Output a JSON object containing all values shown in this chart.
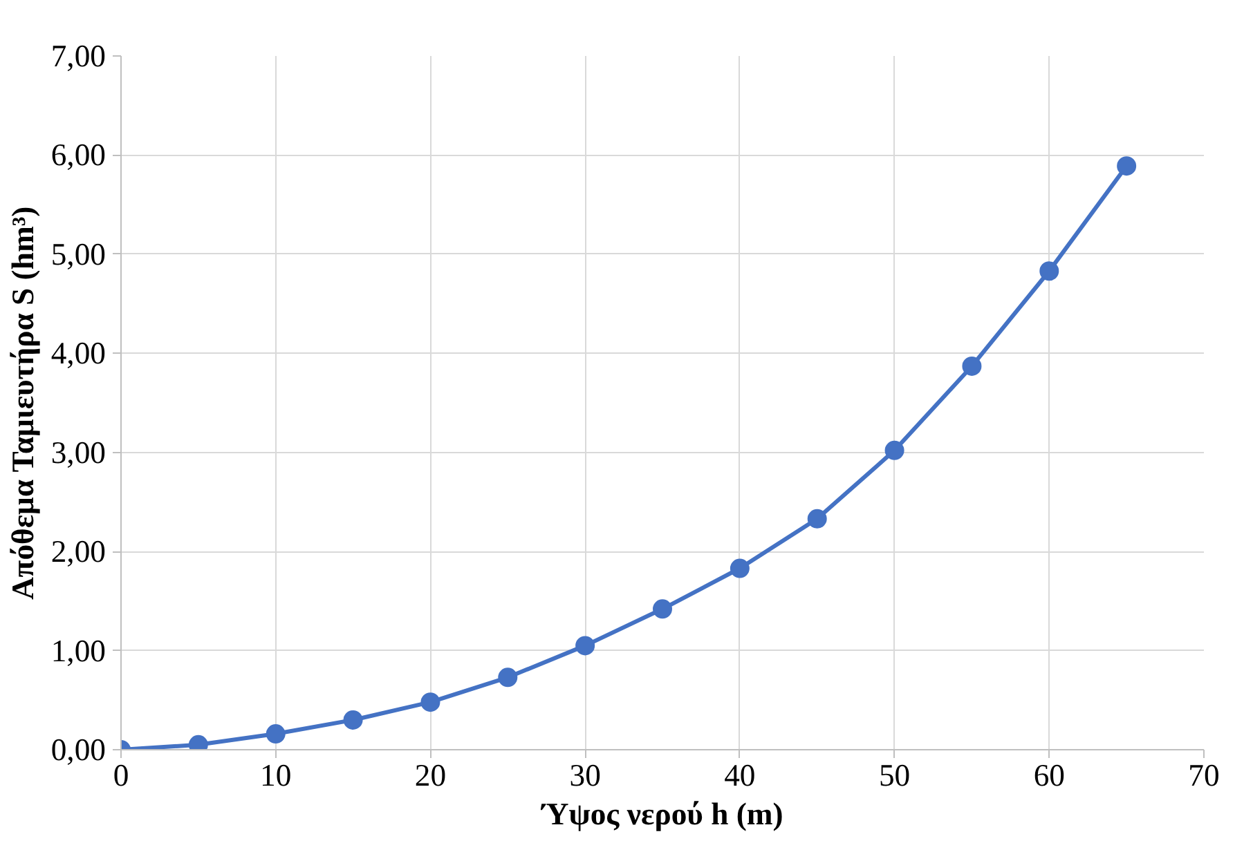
{
  "chart_data": {
    "type": "line",
    "xlabel": "Ύψος νερού h (m)",
    "ylabel": "Απόθεμα Ταμιευτήρα S (hm³)",
    "x": [
      0,
      5,
      10,
      15,
      20,
      25,
      30,
      35,
      40,
      45,
      50,
      55,
      60,
      65
    ],
    "series": [
      {
        "color": "#4472c4",
        "values": [
          0.0,
          0.05,
          0.16,
          0.3,
          0.48,
          0.73,
          1.05,
          1.42,
          1.83,
          2.33,
          3.02,
          3.87,
          4.83,
          5.89
        ]
      }
    ],
    "xlim": [
      0,
      70
    ],
    "xticks": [
      0,
      10,
      20,
      30,
      40,
      50,
      60,
      70
    ],
    "ylim": [
      0,
      7
    ],
    "yticks": [
      {
        "value": 0,
        "label": "0,00"
      },
      {
        "value": 1,
        "label": "1,00"
      },
      {
        "value": 2,
        "label": "2,00"
      },
      {
        "value": 3,
        "label": "3,00"
      },
      {
        "value": 4,
        "label": "4,00"
      },
      {
        "value": 5,
        "label": "5,00"
      },
      {
        "value": 6,
        "label": "6,00"
      },
      {
        "value": 7,
        "label": "7,00"
      }
    ],
    "grid": true,
    "marker": "circle",
    "line_style": "solid"
  }
}
